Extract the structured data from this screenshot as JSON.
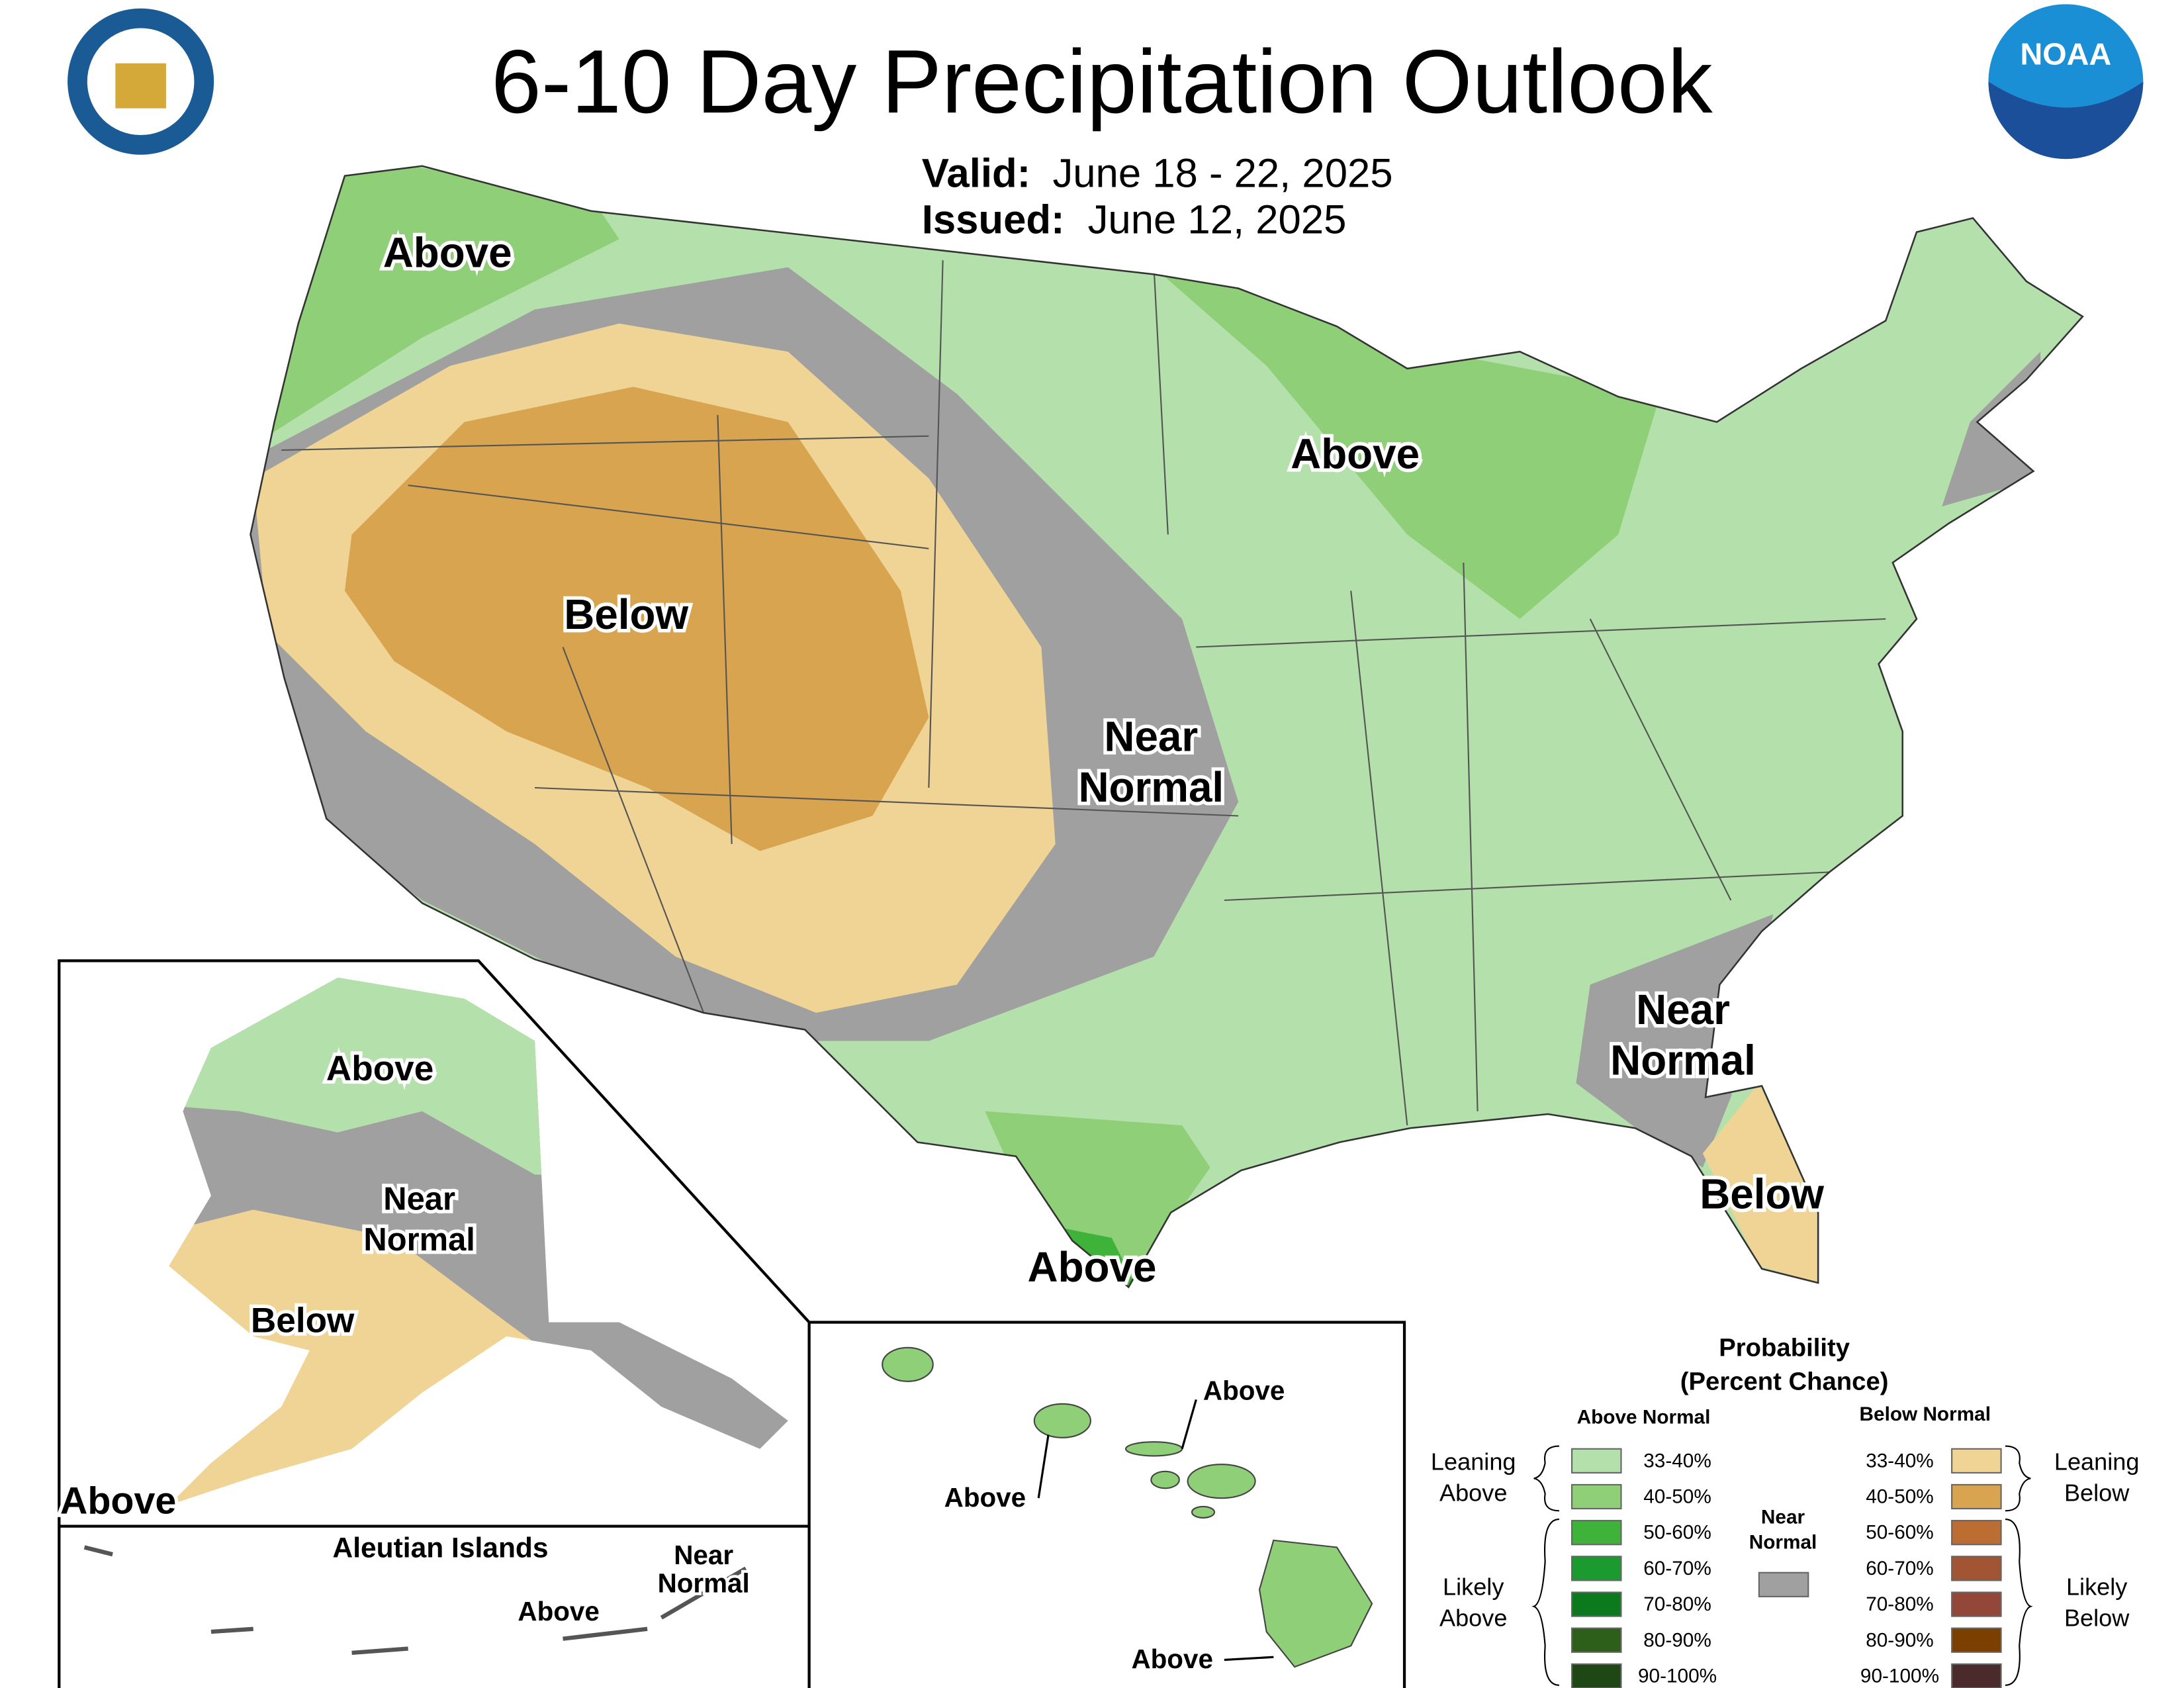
{
  "header": {
    "title": "6-10 Day Precipitation Outlook",
    "valid_label": "Valid:",
    "valid": "June 18 - 22, 2025",
    "issued_label": "Issued:",
    "issued": "June 12, 2025"
  },
  "logos": {
    "noaa": "NOAA"
  },
  "map_labels": {
    "northwest": "Above",
    "great_lakes": "Above",
    "west": "Below",
    "plains": [
      "Near",
      "Normal"
    ],
    "southeast": [
      "Near",
      "Normal"
    ],
    "florida": "Below",
    "texas": "Above"
  },
  "alaska_labels": {
    "north": "Above",
    "central": [
      "Near",
      "Normal"
    ],
    "southwest": "Below",
    "southwest_tip": "Above",
    "aleutian_title": "Aleutian Islands",
    "aleutian_near": [
      "Near",
      "Normal"
    ],
    "aleutian_above": "Above"
  },
  "hawaii_labels": {
    "kauai_oahu": "Above",
    "maui": "Above",
    "big_island": "Above"
  },
  "legend": {
    "title": "Probability",
    "subtitle": "(Percent Chance)",
    "above_header": "Above Normal",
    "below_header": "Below Normal",
    "above": [
      {
        "range": "33-40%",
        "color": "#b3e0ab"
      },
      {
        "range": "40-50%",
        "color": "#8fcf78"
      },
      {
        "range": "50-60%",
        "color": "#3fb23a"
      },
      {
        "range": "60-70%",
        "color": "#1a9a2f"
      },
      {
        "range": "70-80%",
        "color": "#0b7a1c"
      },
      {
        "range": "80-90%",
        "color": "#2d5f1a"
      },
      {
        "range": "90-100%",
        "color": "#1f4715"
      }
    ],
    "below": [
      {
        "range": "33-40%",
        "color": "#f0d495"
      },
      {
        "range": "40-50%",
        "color": "#d8a44f"
      },
      {
        "range": "50-60%",
        "color": "#bb6d32"
      },
      {
        "range": "60-70%",
        "color": "#a15533"
      },
      {
        "range": "70-80%",
        "color": "#924739"
      },
      {
        "range": "80-90%",
        "color": "#7b3f00"
      },
      {
        "range": "90-100%",
        "color": "#4a2a2a"
      }
    ],
    "near_normal": {
      "label": [
        "Near",
        "Normal"
      ],
      "color": "#a0a0a0"
    },
    "leaning_above": [
      "Leaning",
      "Above"
    ],
    "leaning_below": [
      "Leaning",
      "Below"
    ],
    "likely_above": [
      "Likely",
      "Above"
    ],
    "likely_below": [
      "Likely",
      "Below"
    ]
  }
}
